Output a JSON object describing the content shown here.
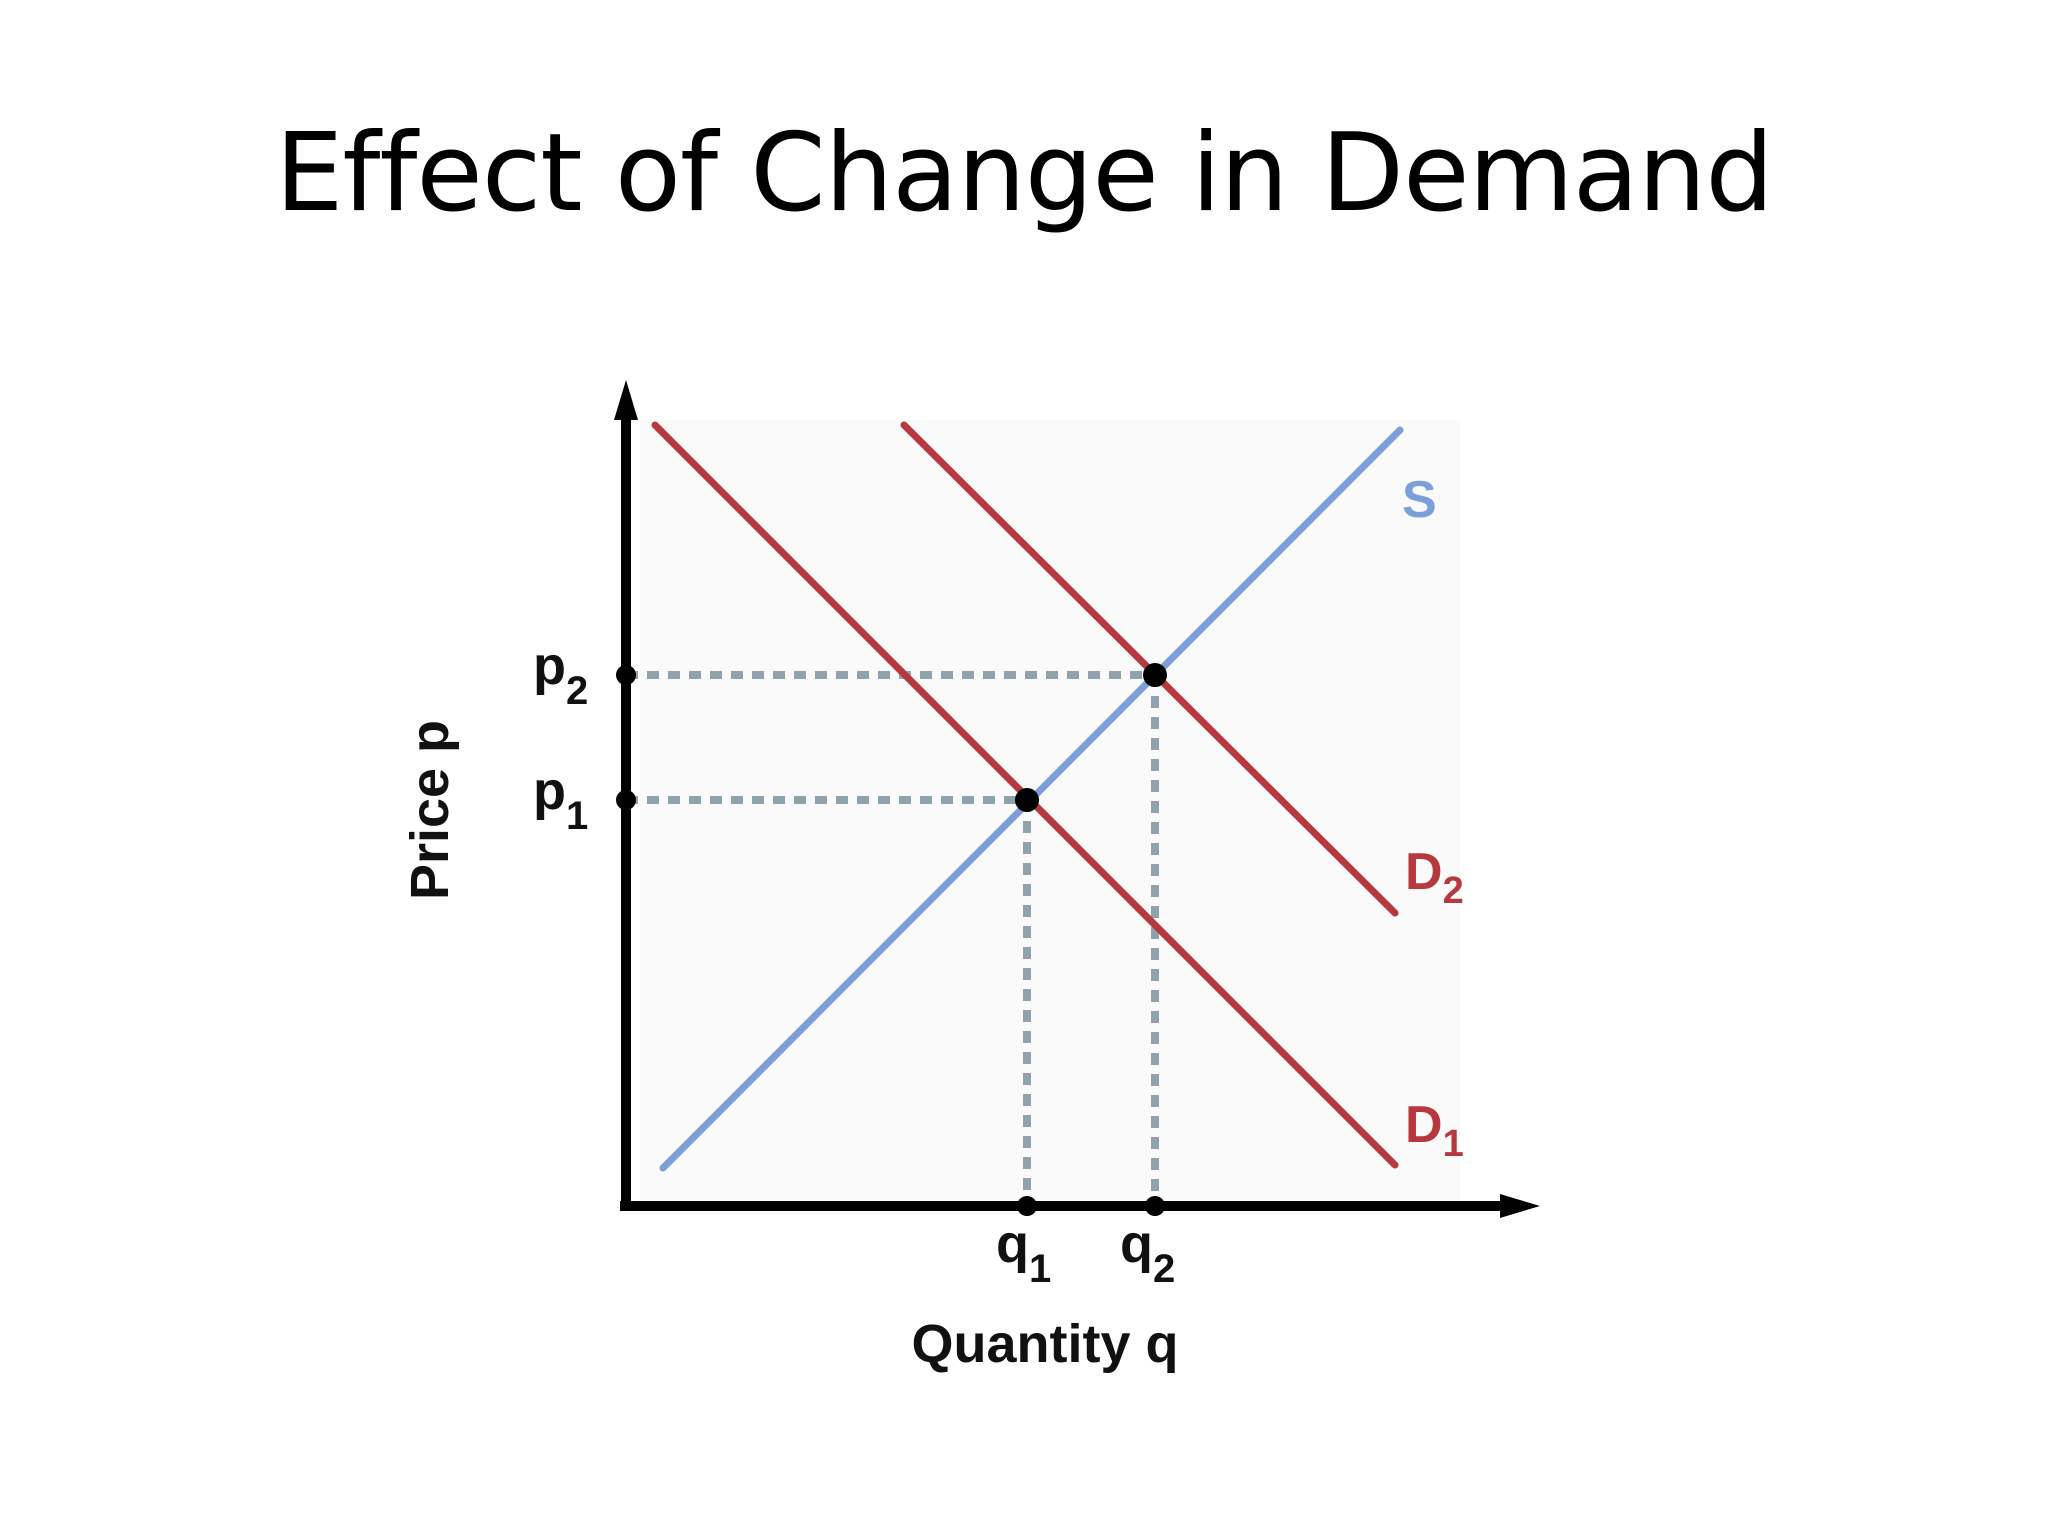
{
  "slide": {
    "title": "Effect of Change in Demand"
  },
  "axes": {
    "x_label": "Quantity q",
    "y_label": "Price p"
  },
  "ticks": {
    "p1": {
      "base": "p",
      "sub": "1"
    },
    "p2": {
      "base": "p",
      "sub": "2"
    },
    "q1": {
      "base": "q",
      "sub": "1"
    },
    "q2": {
      "base": "q",
      "sub": "2"
    }
  },
  "curves": {
    "supply": {
      "base": "S",
      "sub": ""
    },
    "demand1": {
      "base": "D",
      "sub": "1"
    },
    "demand2": {
      "base": "D",
      "sub": "2"
    }
  },
  "colors": {
    "supply": "#7c9fd8",
    "demand": "#b8383f",
    "guide": "#8fa3ac",
    "axis": "#000000"
  }
}
